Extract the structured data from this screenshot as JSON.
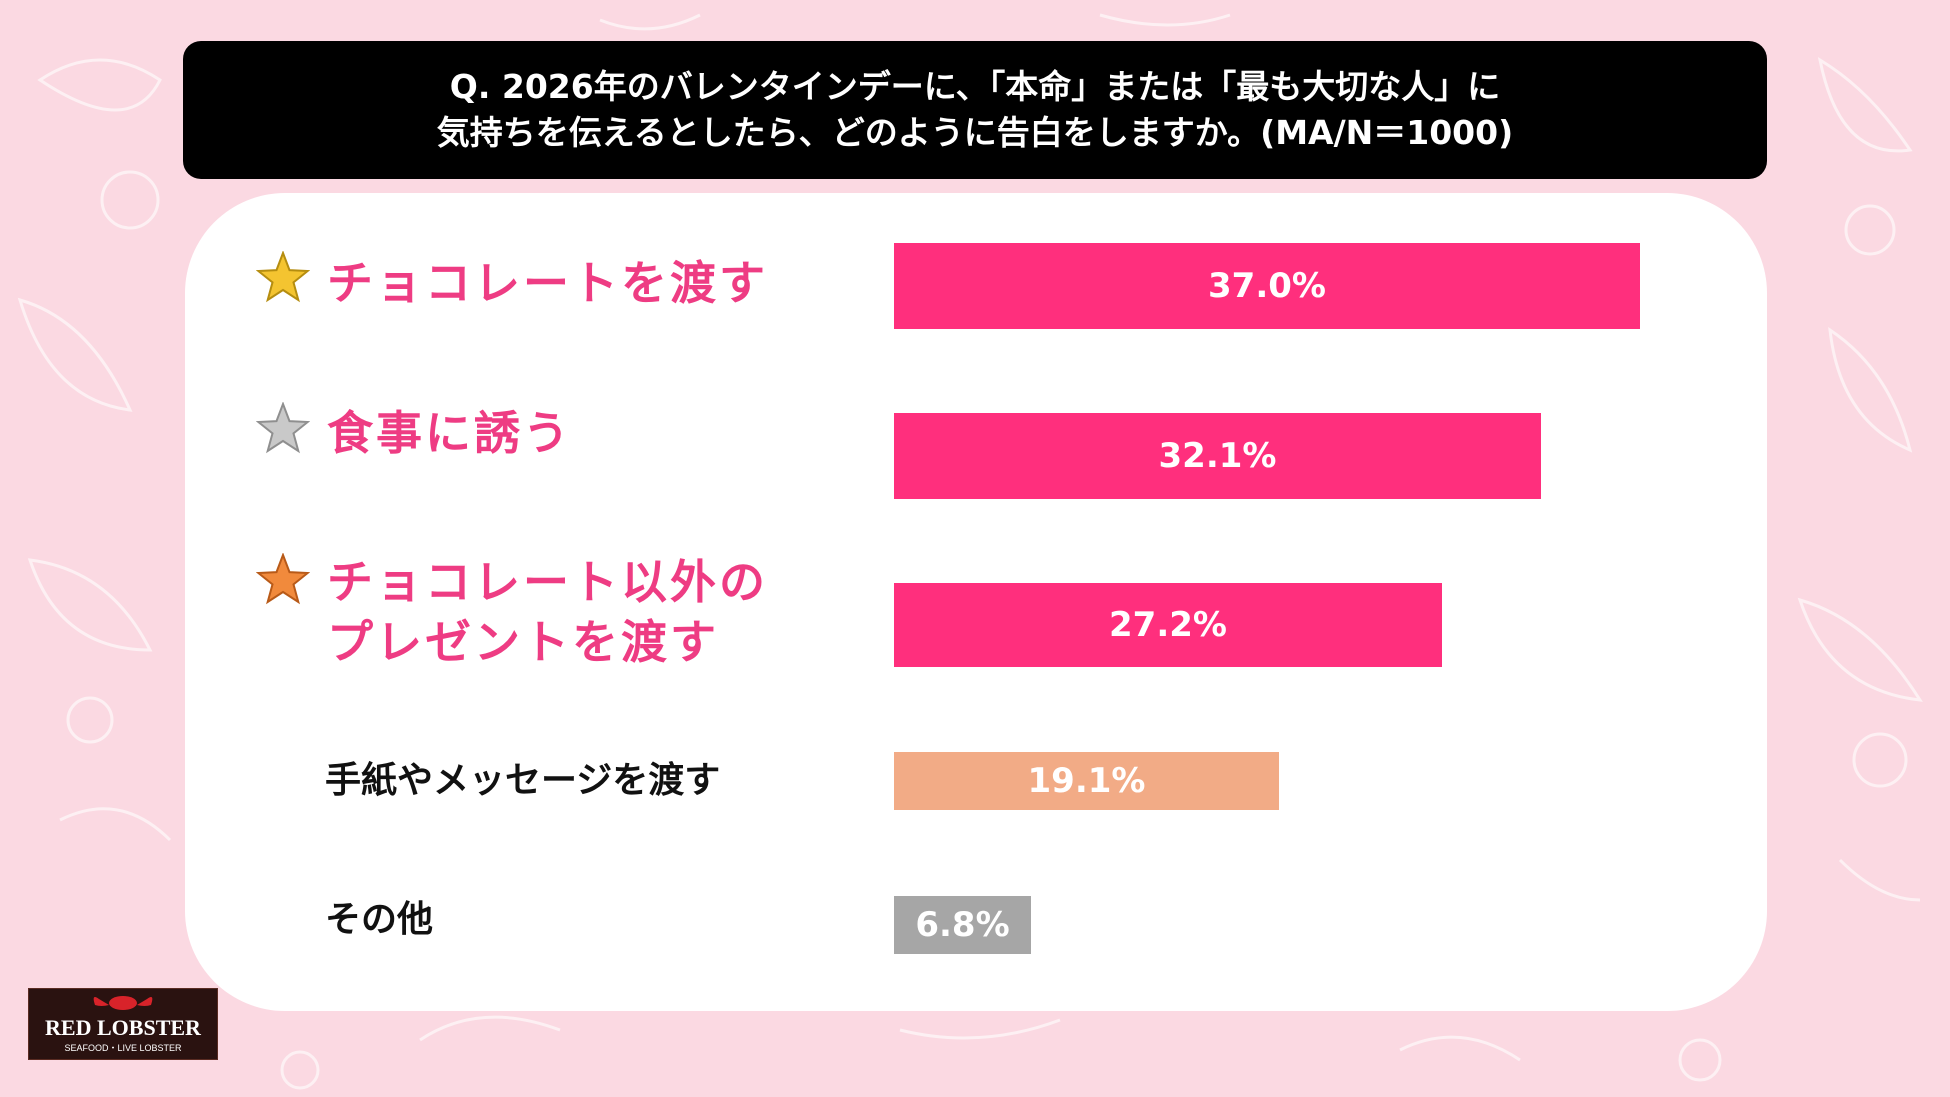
{
  "question": {
    "line1": "Q. 2026年のバレンタインデーに、「本命」または「最も大切な人」に",
    "line2": "気持ちを伝えるとしたら、どのように告白をしますか。(MA/N＝1000)"
  },
  "brand": {
    "name": "RED LOBSTER",
    "tagline": "SEAFOOD・LIVE LOBSTER"
  },
  "chart_data": {
    "type": "bar",
    "orientation": "horizontal",
    "categories": [
      "チョコレートを渡す",
      "食事に誘う",
      "チョコレート以外のプレゼントを渡す",
      "手紙やメッセージを渡す",
      "その他"
    ],
    "values": [
      37.0,
      32.1,
      27.2,
      19.1,
      6.8
    ],
    "value_labels": [
      "37.0%",
      "32.1%",
      "27.2%",
      "19.1%",
      "6.8%"
    ],
    "label_lines": [
      [
        "チョコレートを渡す"
      ],
      [
        "食事に誘う"
      ],
      [
        "チョコレート以外の",
        "プレゼントを渡す"
      ],
      [
        "手紙やメッセージを渡す"
      ],
      [
        "その他"
      ]
    ],
    "rank_icons": [
      "gold-star",
      "silver-star",
      "bronze-star",
      "",
      ""
    ],
    "bar_colors": [
      "#ff2f7d",
      "#ff2f7d",
      "#ff2f7d",
      "#f2ab86",
      "#a6a6a6"
    ],
    "xlim": [
      0,
      37.0
    ],
    "grid": false,
    "legend": "none"
  }
}
